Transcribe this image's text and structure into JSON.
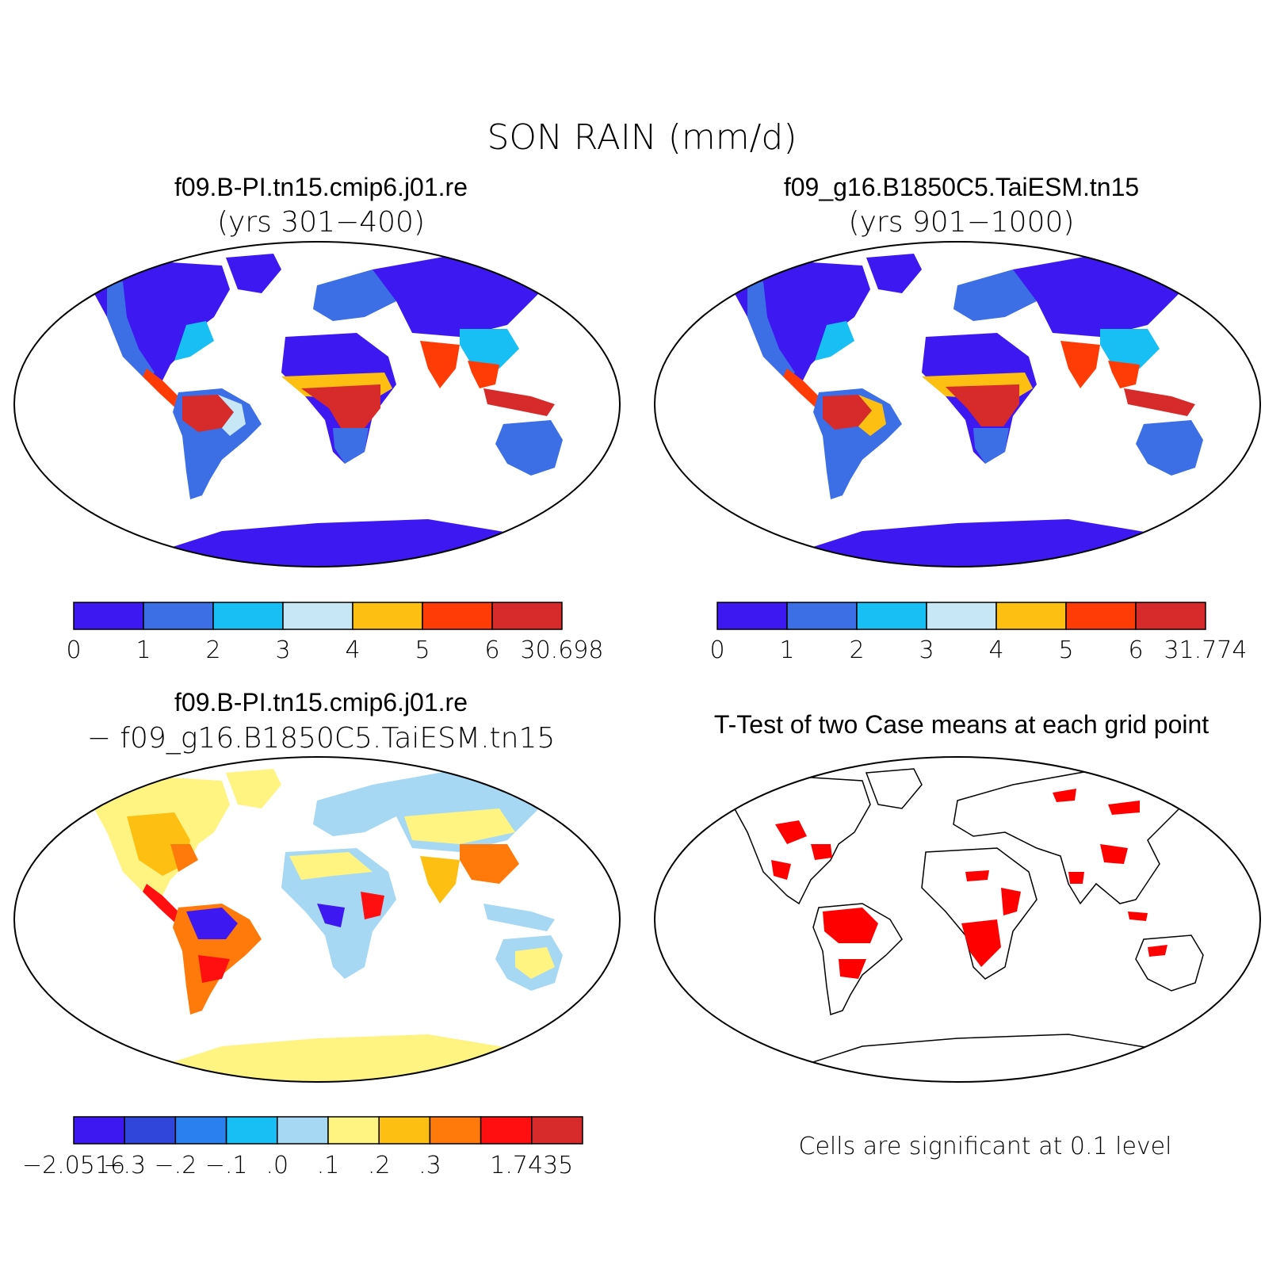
{
  "title": "SON RAIN (mm/d)",
  "panels": {
    "case1": {
      "name": "f09.B-PI.tn15.cmip6.j01.re",
      "years": "(yrs 301−400)"
    },
    "case2": {
      "name": "f09_g16.B1850C5.TaiESM.tn15",
      "years": "(yrs 901−1000)"
    },
    "diff": {
      "name": "f09.B-PI.tn15.cmip6.j01.re",
      "subtract": "−  f09_g16.B1850C5.TaiESM.tn15"
    },
    "ttest": {
      "title": "T-Test of two Case means at each grid point",
      "note": "Cells are significant at 0.1 level"
    }
  },
  "colorbars": {
    "case1": {
      "colors": [
        "#3d18f0",
        "#3c6ee6",
        "#17bff4",
        "#c7e7f7",
        "#fdbf12",
        "#ff3c06",
        "#d72a2a"
      ],
      "labels": [
        "0",
        "1",
        "2",
        "3",
        "4",
        "5",
        "6",
        "30.698"
      ]
    },
    "case2": {
      "colors": [
        "#3d18f0",
        "#3c6ee6",
        "#17bff4",
        "#c7e7f7",
        "#fdbf12",
        "#ff3c06",
        "#d72a2a"
      ],
      "labels": [
        "0",
        "1",
        "2",
        "3",
        "4",
        "5",
        "6",
        "31.774"
      ]
    },
    "diff": {
      "colors": [
        "#3d18f0",
        "#3046da",
        "#2a80ee",
        "#17bff4",
        "#a6d8f4",
        "#fff482",
        "#fdbf12",
        "#ff7a0a",
        "#ff0f0f",
        "#d72a2a"
      ],
      "labels": [
        "−2.0516",
        "−.3",
        "−.2",
        "−.1",
        ".0",
        ".1",
        ".2",
        ".3",
        "",
        "1.7435"
      ]
    }
  }
}
